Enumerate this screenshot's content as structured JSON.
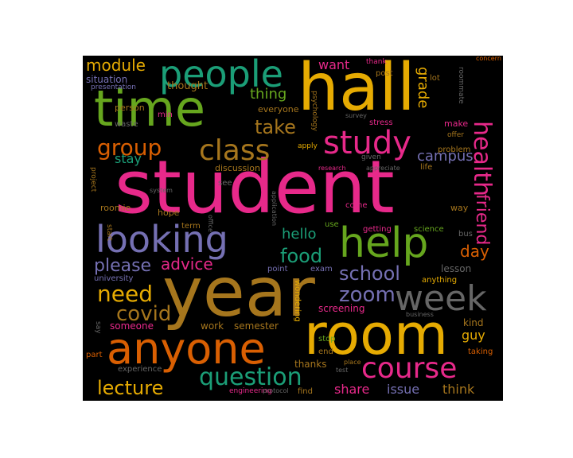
{
  "palette": {
    "pink": "#e7298a",
    "gold": "#e6ab02",
    "brown": "#a6761d",
    "green": "#66a61e",
    "teal": "#1b9e77",
    "orange": "#d95f02",
    "purple": "#7570b3",
    "gray": "#666666"
  },
  "words": {
    "student": "student",
    "year": "year",
    "hall": "hall",
    "room": "room",
    "time": "time",
    "anyone": "anyone",
    "help": "help",
    "people": "people",
    "looking": "looking",
    "week": "week",
    "study": "study",
    "course": "course",
    "class": "class",
    "health": "health",
    "question": "question",
    "group": "group",
    "friend": "friend",
    "need": "need",
    "covid": "covid",
    "zoom": "zoom",
    "lecture": "lecture",
    "school": "school",
    "food": "food",
    "take": "take",
    "advice": "advice",
    "please": "please",
    "module": "module",
    "campus": "campus",
    "day": "day",
    "grade": "grade",
    "thing": "thing",
    "hello": "hello",
    "stay": "stay",
    "share": "share",
    "issue": "issue",
    "think": "think",
    "guy": "guy",
    "want": "want",
    "thought": "thought",
    "situation": "situation",
    "person": "person",
    "presentation": "presentation",
    "waste": "waste",
    "min": "min",
    "everyone": "everyone",
    "psychology": "psychology",
    "survey": "survey",
    "post": "post",
    "lot": "lot",
    "thank": "thank",
    "concern": "concern",
    "roommate": "roommate",
    "stress": "stress",
    "make": "make",
    "offer": "offer",
    "problem": "problem",
    "apply": "apply",
    "given": "given",
    "appreciate": "appreciate",
    "life": "life",
    "research": "research",
    "discussion": "discussion",
    "project": "project",
    "system": "system",
    "see": "see",
    "application": "application",
    "roomie": "roomie",
    "hope": "hope",
    "term": "term",
    "office": "office",
    "start": "start",
    "come": "come",
    "way": "way",
    "use": "use",
    "getting": "getting",
    "science": "science",
    "bus": "bus",
    "point": "point",
    "exam": "exam",
    "lesson": "lesson",
    "university": "university",
    "wondering": "wondering",
    "anything": "anything",
    "screening": "screening",
    "business": "business",
    "kind": "kind",
    "say": "say",
    "someone": "someone",
    "work": "work",
    "semester": "semester",
    "stop": "stop",
    "end": "end",
    "taking": "taking",
    "part": "part",
    "thanks": "thanks",
    "test": "test",
    "place": "place",
    "experience": "experience",
    "engineering": "engineering",
    "find": "find",
    "protocol": "protocol"
  }
}
